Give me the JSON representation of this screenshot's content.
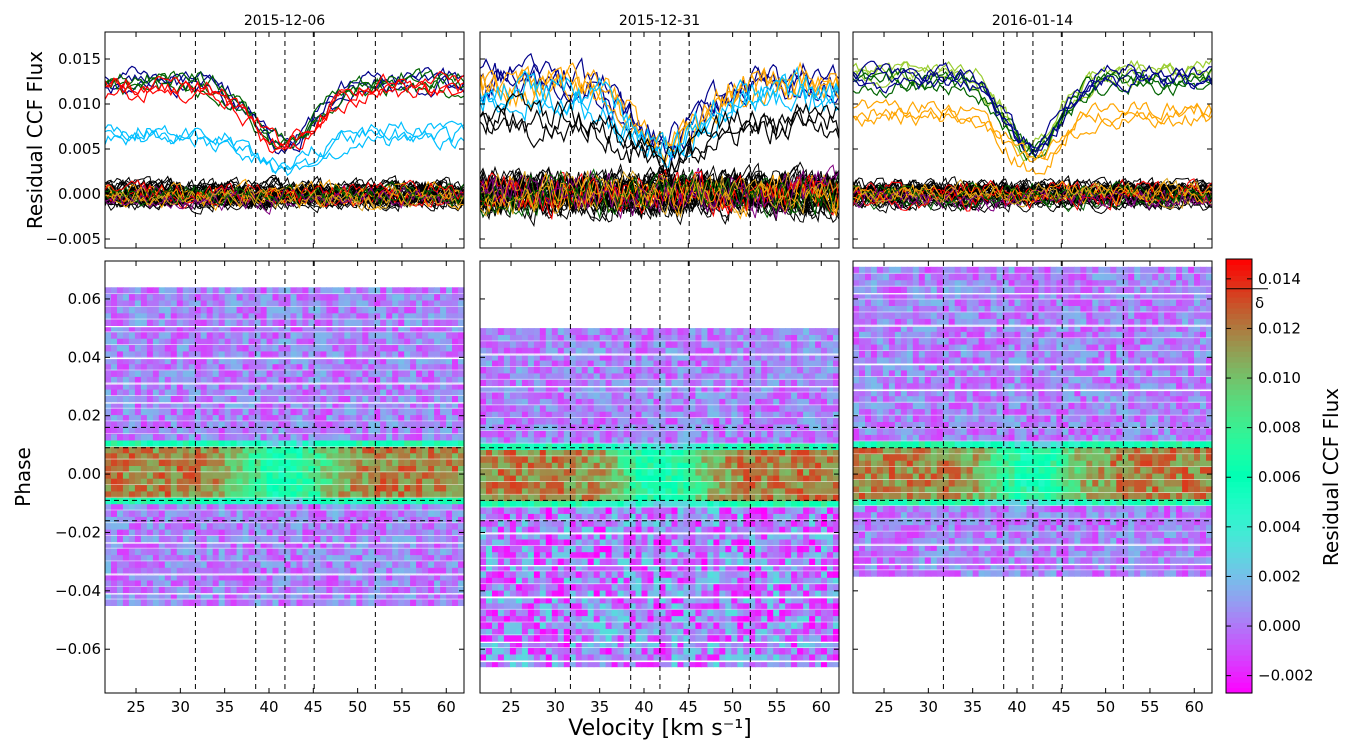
{
  "figure": {
    "ylabel_top": "Residual CCF Flux",
    "ylabel_bottom": "Phase",
    "xlabel": "Velocity [km s⁻¹]",
    "colorbar_label": "Residual CCF Flux",
    "colorbar_marker_label": "δ",
    "colorbar_marker_value": 0.0136
  },
  "chart_data": [
    {
      "type": "line",
      "panel": "2015-12-06 residual CCF",
      "title": "2015-12-06",
      "xlabel": "",
      "ylabel": "Residual CCF Flux",
      "xlim": [
        21.5,
        62
      ],
      "ylim": [
        -0.006,
        0.018
      ],
      "yticks": [
        -0.005,
        0.0,
        0.005,
        0.01,
        0.015
      ],
      "ytick_labels": [
        "−0.005",
        "0.000",
        "0.005",
        "0.010",
        "0.015"
      ],
      "vlines": [
        31.7,
        38.5,
        41.8,
        45.1,
        52.0
      ],
      "in_transit": {
        "baseline": 0.0122,
        "depth": 0.0066,
        "center": 41.8,
        "sigma": 3.6
      },
      "series": [
        {
          "color": "#00008b",
          "values": [
            0.0125,
            0.006
          ]
        },
        {
          "color": "#006400",
          "values": [
            0.0124,
            0.006
          ]
        },
        {
          "color": "#ff0000",
          "values": [
            0.0118,
            0.0055
          ]
        },
        {
          "color": "#00bfff",
          "values": [
            0.0066,
            0.003
          ]
        }
      ],
      "out_of_transit_level": 0.0
    },
    {
      "type": "line",
      "panel": "2015-12-31 residual CCF",
      "title": "2015-12-31",
      "xlabel": "",
      "ylabel": "",
      "xlim": [
        21.5,
        62
      ],
      "ylim": [
        -0.006,
        0.018
      ],
      "vlines": [
        31.7,
        38.5,
        41.8,
        45.1,
        52.0
      ],
      "in_transit": {
        "baseline": 0.0118,
        "depth": 0.0065,
        "center": 42.5,
        "sigma": 3.8
      },
      "series": [
        {
          "color": "#00008b",
          "values": [
            0.0125,
            0.006
          ]
        },
        {
          "color": "#ffa500",
          "values": [
            0.012,
            0.0058
          ]
        },
        {
          "color": "#00bfff",
          "values": [
            0.011,
            0.005
          ]
        },
        {
          "color": "#000000",
          "values": [
            0.008,
            0.004
          ]
        }
      ],
      "out_of_transit_level": 0.0
    },
    {
      "type": "line",
      "panel": "2016-01-14 residual CCF",
      "title": "2016-01-14",
      "xlabel": "",
      "ylabel": "",
      "xlim": [
        21.5,
        62
      ],
      "ylim": [
        -0.006,
        0.018
      ],
      "vlines": [
        31.7,
        38.5,
        41.8,
        45.1,
        52.0
      ],
      "in_transit": {
        "baseline": 0.0128,
        "depth": 0.008,
        "center": 41.8,
        "sigma": 3.0
      },
      "series": [
        {
          "color": "#9acd32",
          "values": [
            0.0135,
            0.006
          ]
        },
        {
          "color": "#006400",
          "values": [
            0.0125,
            0.005
          ]
        },
        {
          "color": "#00008b",
          "values": [
            0.013,
            0.0055
          ]
        },
        {
          "color": "#ffa500",
          "values": [
            0.009,
            0.004
          ]
        }
      ],
      "out_of_transit_level": 0.0
    },
    {
      "type": "heatmap",
      "panel": "2015-12-06 phase map",
      "xlabel": "",
      "ylabel": "Phase",
      "xlim": [
        21.5,
        62
      ],
      "ylim": [
        -0.075,
        0.073
      ],
      "xticks": [
        25,
        30,
        35,
        40,
        45,
        50,
        55,
        60
      ],
      "yticks": [
        -0.06,
        -0.04,
        -0.02,
        0.0,
        0.02,
        0.04,
        0.06
      ],
      "ytick_labels": [
        "−0.06",
        "−0.04",
        "−0.02",
        "0.00",
        "0.02",
        "0.04",
        "0.06"
      ],
      "phase_range": [
        -0.045,
        0.064
      ],
      "transit_phase": [
        -0.011,
        0.011
      ],
      "hlines": [
        0.016,
        0.009,
        -0.009,
        -0.016
      ],
      "vlines": [
        31.7,
        38.5,
        41.8,
        45.1,
        52.0
      ],
      "gap_phases": [
        0.05,
        0.04,
        0.03,
        0.024,
        -0.025,
        -0.035,
        -0.041
      ]
    },
    {
      "type": "heatmap",
      "panel": "2015-12-31 phase map",
      "xlabel": "",
      "ylabel": "",
      "xlim": [
        21.5,
        62
      ],
      "ylim": [
        -0.075,
        0.073
      ],
      "xticks": [
        25,
        30,
        35,
        40,
        45,
        50,
        55,
        60
      ],
      "phase_range": [
        -0.066,
        0.05
      ],
      "transit_phase": [
        -0.011,
        0.011
      ],
      "hlines": [
        0.016,
        0.009,
        -0.009,
        -0.016
      ],
      "vlines": [
        31.7,
        38.5,
        41.8,
        45.1,
        52.0
      ],
      "gap_phases": [
        0.04,
        0.03,
        -0.022,
        -0.031,
        -0.044,
        -0.058,
        -0.064
      ]
    },
    {
      "type": "heatmap",
      "panel": "2016-01-14 phase map",
      "xlabel": "",
      "ylabel": "",
      "xlim": [
        21.5,
        62
      ],
      "ylim": [
        -0.075,
        0.073
      ],
      "xticks": [
        25,
        30,
        35,
        40,
        45,
        50,
        55,
        60
      ],
      "phase_range": [
        -0.035,
        0.071
      ],
      "transit_phase": [
        -0.011,
        0.011
      ],
      "hlines": [
        0.016,
        0.009,
        -0.009,
        -0.016
      ],
      "vlines": [
        31.7,
        38.5,
        41.8,
        45.1,
        52.0
      ],
      "gap_phases": [
        0.061,
        0.05,
        0.036,
        0.028,
        -0.024,
        -0.031
      ]
    }
  ],
  "colorbar": {
    "type": "colorbar",
    "range": [
      -0.0027,
      0.0148
    ],
    "ticks": [
      -0.002,
      0.0,
      0.002,
      0.004,
      0.006,
      0.008,
      0.01,
      0.012,
      0.014
    ],
    "tick_labels": [
      "−0.002",
      "0.000",
      "0.002",
      "0.004",
      "0.006",
      "0.008",
      "0.010",
      "0.012",
      "0.014"
    ],
    "colormap": "rainbow"
  }
}
